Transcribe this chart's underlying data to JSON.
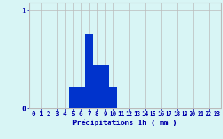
{
  "xlabel": "Précipitations 1h ( mm )",
  "bar_color": "#0033cc",
  "background_color": "#d8f5f5",
  "grid_color": "#bbbbbb",
  "tick_label_color": "#0000aa",
  "xlabel_color": "#0000aa",
  "hours": [
    0,
    1,
    2,
    3,
    4,
    5,
    6,
    7,
    8,
    9,
    10,
    11,
    12,
    13,
    14,
    15,
    16,
    17,
    18,
    19,
    20,
    21,
    22,
    23
  ],
  "values": [
    0,
    0,
    0,
    0,
    0,
    0.22,
    0.22,
    0.76,
    0.44,
    0.44,
    0.22,
    0,
    0,
    0,
    0,
    0,
    0,
    0,
    0,
    0,
    0,
    0,
    0,
    0
  ],
  "ylim": [
    0,
    1.08
  ],
  "yticks": [
    0,
    1
  ],
  "xlim": [
    -0.5,
    23.5
  ],
  "bar_width": 1.0,
  "figsize": [
    3.2,
    2.0
  ],
  "dpi": 100,
  "tick_fontsize": 5.5,
  "ytick_fontsize": 7,
  "xlabel_fontsize": 7.5
}
